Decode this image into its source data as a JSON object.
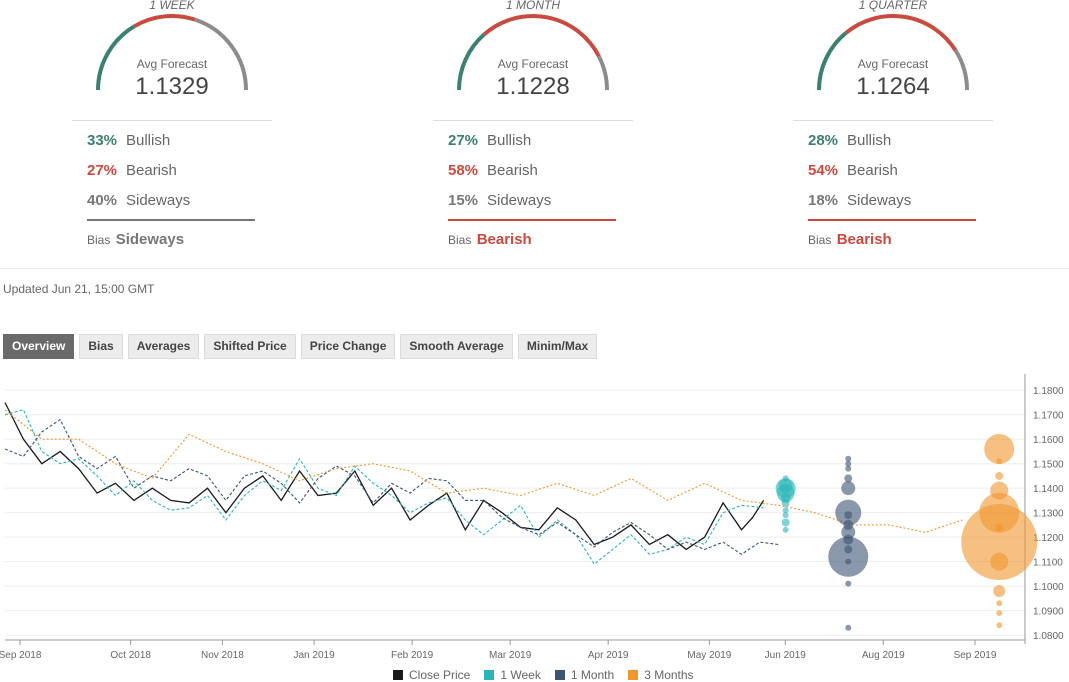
{
  "gauges": [
    {
      "period": "1 WEEK",
      "avg_label": "Avg Forecast",
      "avg_value": "1.1329",
      "bullish": {
        "pct": "33%",
        "label": "Bullish"
      },
      "bearish": {
        "pct": "27%",
        "label": "Bearish"
      },
      "sideways": {
        "pct": "40%",
        "label": "Sideways"
      },
      "bias_label": "Bias",
      "bias_value": "Sideways",
      "bias_color": "#777777"
    },
    {
      "period": "1 MONTH",
      "avg_label": "Avg Forecast",
      "avg_value": "1.1228",
      "bullish": {
        "pct": "27%",
        "label": "Bullish"
      },
      "bearish": {
        "pct": "58%",
        "label": "Bearish"
      },
      "sideways": {
        "pct": "15%",
        "label": "Sideways"
      },
      "bias_label": "Bias",
      "bias_value": "Bearish",
      "bias_color": "#c94b3f"
    },
    {
      "period": "1 QUARTER",
      "avg_label": "Avg Forecast",
      "avg_value": "1.1264",
      "bullish": {
        "pct": "28%",
        "label": "Bullish"
      },
      "bearish": {
        "pct": "54%",
        "label": "Bearish"
      },
      "sideways": {
        "pct": "18%",
        "label": "Sideways"
      },
      "bias_label": "Bias",
      "bias_value": "Bearish",
      "bias_color": "#c94b3f"
    }
  ],
  "updated": "Updated Jun 21, 15:00 GMT",
  "tabs": [
    "Overview",
    "Bias",
    "Averages",
    "Shifted Price",
    "Price Change",
    "Smooth Average",
    "Minim/Max"
  ],
  "active_tab": "Overview",
  "colors": {
    "bullish": "#3b8070",
    "bearish": "#c94b3f",
    "sideways": "#8c8c8c",
    "close": "#1a1a1a",
    "week": "#2bb5b8",
    "month": "#3c5473",
    "quarter": "#f0962f"
  },
  "chart_data": {
    "type": "line",
    "x_ticks": [
      "Sep 2018",
      "Oct 2018",
      "Nov 2018",
      "Jan 2019",
      "Feb 2019",
      "Mar 2019",
      "Apr 2019",
      "May 2019",
      "Jun 2019",
      "Aug 2019",
      "Sep 2019"
    ],
    "y_ticks": [
      "1.1800",
      "1.1700",
      "1.1600",
      "1.1500",
      "1.1400",
      "1.1300",
      "1.1200",
      "1.1100",
      "1.1000",
      "1.0900",
      "1.0800"
    ],
    "ylim": [
      1.078,
      1.185
    ],
    "grid": true,
    "legend_position": "bottom",
    "series": [
      {
        "name": "Close Price",
        "key": "close",
        "style": "solid",
        "points": [
          [
            0,
            1.175
          ],
          [
            5,
            1.16
          ],
          [
            10,
            1.15
          ],
          [
            15,
            1.155
          ],
          [
            20,
            1.148
          ],
          [
            25,
            1.138
          ],
          [
            30,
            1.142
          ],
          [
            35,
            1.135
          ],
          [
            40,
            1.14
          ],
          [
            45,
            1.135
          ],
          [
            50,
            1.134
          ],
          [
            55,
            1.14
          ],
          [
            60,
            1.13
          ],
          [
            65,
            1.14
          ],
          [
            70,
            1.145
          ],
          [
            75,
            1.135
          ],
          [
            80,
            1.147
          ],
          [
            85,
            1.137
          ],
          [
            90,
            1.138
          ],
          [
            95,
            1.147
          ],
          [
            100,
            1.133
          ],
          [
            105,
            1.14
          ],
          [
            110,
            1.127
          ],
          [
            115,
            1.133
          ],
          [
            120,
            1.138
          ],
          [
            125,
            1.123
          ],
          [
            130,
            1.135
          ],
          [
            135,
            1.13
          ],
          [
            140,
            1.124
          ],
          [
            145,
            1.123
          ],
          [
            150,
            1.132
          ],
          [
            155,
            1.127
          ],
          [
            160,
            1.117
          ],
          [
            165,
            1.12
          ],
          [
            170,
            1.125
          ],
          [
            175,
            1.117
          ],
          [
            180,
            1.121
          ],
          [
            185,
            1.115
          ],
          [
            190,
            1.12
          ],
          [
            195,
            1.134
          ],
          [
            200,
            1.123
          ],
          [
            203,
            1.128
          ],
          [
            206,
            1.135
          ]
        ]
      },
      {
        "name": "1 Week",
        "key": "week",
        "style": "dashed",
        "points": [
          [
            0,
            1.17
          ],
          [
            5,
            1.172
          ],
          [
            10,
            1.155
          ],
          [
            15,
            1.15
          ],
          [
            20,
            1.152
          ],
          [
            25,
            1.145
          ],
          [
            30,
            1.137
          ],
          [
            35,
            1.143
          ],
          [
            40,
            1.135
          ],
          [
            45,
            1.131
          ],
          [
            50,
            1.132
          ],
          [
            55,
            1.137
          ],
          [
            60,
            1.127
          ],
          [
            65,
            1.137
          ],
          [
            70,
            1.143
          ],
          [
            75,
            1.139
          ],
          [
            80,
            1.152
          ],
          [
            85,
            1.14
          ],
          [
            90,
            1.137
          ],
          [
            95,
            1.149
          ],
          [
            100,
            1.142
          ],
          [
            105,
            1.137
          ],
          [
            110,
            1.13
          ],
          [
            115,
            1.134
          ],
          [
            120,
            1.136
          ],
          [
            125,
            1.127
          ],
          [
            130,
            1.121
          ],
          [
            135,
            1.127
          ],
          [
            140,
            1.133
          ],
          [
            145,
            1.12
          ],
          [
            150,
            1.127
          ],
          [
            155,
            1.121
          ],
          [
            160,
            1.109
          ],
          [
            165,
            1.115
          ],
          [
            170,
            1.121
          ],
          [
            175,
            1.113
          ],
          [
            180,
            1.115
          ],
          [
            185,
            1.12
          ],
          [
            190,
            1.117
          ],
          [
            195,
            1.13
          ],
          [
            200,
            1.133
          ],
          [
            206,
            1.132
          ]
        ]
      },
      {
        "name": "1 Month",
        "key": "month",
        "style": "dashed",
        "points": [
          [
            0,
            1.156
          ],
          [
            5,
            1.153
          ],
          [
            10,
            1.163
          ],
          [
            15,
            1.168
          ],
          [
            20,
            1.153
          ],
          [
            25,
            1.148
          ],
          [
            30,
            1.153
          ],
          [
            35,
            1.14
          ],
          [
            40,
            1.145
          ],
          [
            45,
            1.143
          ],
          [
            50,
            1.148
          ],
          [
            55,
            1.145
          ],
          [
            60,
            1.135
          ],
          [
            65,
            1.145
          ],
          [
            70,
            1.147
          ],
          [
            75,
            1.142
          ],
          [
            80,
            1.134
          ],
          [
            85,
            1.144
          ],
          [
            90,
            1.149
          ],
          [
            95,
            1.145
          ],
          [
            100,
            1.134
          ],
          [
            105,
            1.142
          ],
          [
            110,
            1.138
          ],
          [
            115,
            1.144
          ],
          [
            120,
            1.143
          ],
          [
            125,
            1.135
          ],
          [
            130,
            1.135
          ],
          [
            135,
            1.128
          ],
          [
            140,
            1.124
          ],
          [
            145,
            1.121
          ],
          [
            150,
            1.126
          ],
          [
            155,
            1.121
          ],
          [
            160,
            1.116
          ],
          [
            165,
            1.122
          ],
          [
            170,
            1.126
          ],
          [
            175,
            1.121
          ],
          [
            180,
            1.115
          ],
          [
            185,
            1.118
          ],
          [
            190,
            1.115
          ],
          [
            195,
            1.118
          ],
          [
            200,
            1.113
          ],
          [
            205,
            1.118
          ],
          [
            210,
            1.117
          ]
        ]
      },
      {
        "name": "3 Months",
        "key": "quarter",
        "style": "dotted",
        "points": [
          [
            0,
            1.172
          ],
          [
            10,
            1.16
          ],
          [
            20,
            1.16
          ],
          [
            30,
            1.15
          ],
          [
            40,
            1.144
          ],
          [
            50,
            1.162
          ],
          [
            60,
            1.155
          ],
          [
            70,
            1.15
          ],
          [
            80,
            1.143
          ],
          [
            90,
            1.148
          ],
          [
            100,
            1.15
          ],
          [
            110,
            1.147
          ],
          [
            120,
            1.138
          ],
          [
            130,
            1.14
          ],
          [
            140,
            1.137
          ],
          [
            150,
            1.142
          ],
          [
            160,
            1.137
          ],
          [
            170,
            1.144
          ],
          [
            180,
            1.135
          ],
          [
            190,
            1.142
          ],
          [
            200,
            1.135
          ],
          [
            210,
            1.133
          ],
          [
            220,
            1.13
          ],
          [
            230,
            1.125
          ],
          [
            240,
            1.125
          ],
          [
            250,
            1.122
          ],
          [
            260,
            1.127
          ]
        ]
      }
    ],
    "forecast_bubbles": [
      {
        "series": "week",
        "x": 212,
        "values": [
          1.144,
          1.141,
          1.14,
          1.138,
          1.136,
          1.134,
          1.131,
          1.129,
          1.126,
          1.123
        ]
      },
      {
        "series": "month",
        "x": 229,
        "values": [
          1.152,
          1.15,
          1.148,
          1.144,
          1.14,
          1.13,
          1.129,
          1.125,
          1.122,
          1.119,
          1.115,
          1.112,
          1.11,
          1.101,
          1.083
        ]
      },
      {
        "series": "quarter",
        "x": 270,
        "values": [
          1.156,
          1.151,
          1.145,
          1.139,
          1.13,
          1.124,
          1.118,
          1.11,
          1.098,
          1.093,
          1.089,
          1.084
        ]
      }
    ]
  }
}
